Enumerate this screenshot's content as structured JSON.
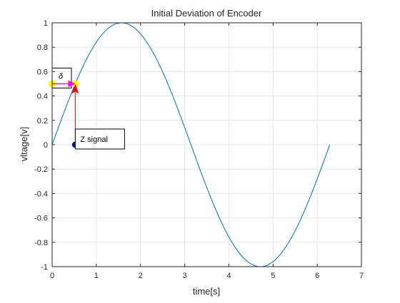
{
  "chart_data": {
    "type": "line",
    "title": "Initial Deviation of Encoder",
    "xlabel": "time[s]",
    "ylabel": "vltage[v]",
    "xlim": [
      0,
      7
    ],
    "ylim": [
      -1,
      1
    ],
    "xticks": [
      0,
      1,
      2,
      3,
      4,
      5,
      6,
      7
    ],
    "yticks": [
      -1,
      -0.8,
      -0.6,
      -0.4,
      -0.2,
      0,
      0.2,
      0.4,
      0.6,
      0.8,
      1
    ],
    "xtick_labels": [
      "0",
      "1",
      "2",
      "3",
      "4",
      "5",
      "6",
      "7"
    ],
    "ytick_labels": [
      "-1",
      "-0.8",
      "-0.6",
      "-0.4",
      "-0.2",
      "0",
      "0.2",
      "0.4",
      "0.6",
      "0.8",
      "1"
    ],
    "grid": true,
    "series": [
      {
        "function": "sin(x)",
        "x_range": [
          0,
          6.2832
        ],
        "color": "#0072bd"
      }
    ],
    "annotations": {
      "z_signal": {
        "label": "Z signal",
        "x": 0.5236,
        "y": 0,
        "color": "#0000cc"
      },
      "delta": {
        "label": "δ",
        "x_start": 0,
        "x_end": 0.5236,
        "y": 0.5,
        "arrow_color": "#ff00ff"
      },
      "vertical_arrow": {
        "x": 0.5236,
        "y_start": 0,
        "y_end": 0.5,
        "color": "#ff0000"
      },
      "highlight_points": [
        {
          "x": 0,
          "y": 0.5,
          "color": "#ffff00"
        },
        {
          "x": 0.5236,
          "y": 0.5,
          "color": "#ffff00"
        }
      ]
    },
    "colors": {
      "line": "#0072bd",
      "grid": "#e6e6e6",
      "axis": "#262626"
    }
  }
}
